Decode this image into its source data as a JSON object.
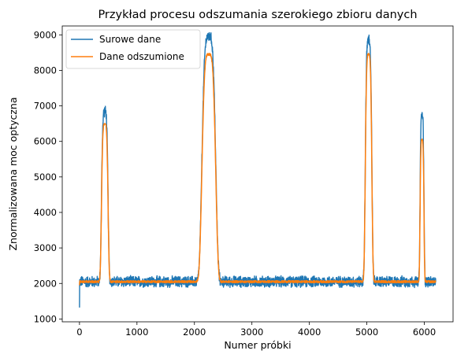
{
  "chart_data": {
    "type": "line",
    "title": "Przykład procesu odszumania szerokiego zbioru danych",
    "xlabel": "Numer próbki",
    "ylabel": "Znormalizowana moc optyczna",
    "xlim": [
      -300,
      6500
    ],
    "ylim": [
      920,
      9250
    ],
    "xticks": [
      0,
      1000,
      2000,
      3000,
      4000,
      5000,
      6000
    ],
    "yticks": [
      1000,
      2000,
      3000,
      4000,
      5000,
      6000,
      7000,
      8000,
      9000
    ],
    "grid": false,
    "legend_position": "top-left",
    "baseline": 2050,
    "n_samples": 6200,
    "peaks": [
      {
        "center": 440,
        "raw_max": 6850,
        "smooth_max": 6500,
        "width": 100
      },
      {
        "center": 2250,
        "raw_max": 8950,
        "smooth_max": 8450,
        "width": 210
      },
      {
        "center": 5030,
        "raw_max": 8850,
        "smooth_max": 8450,
        "width": 100
      },
      {
        "center": 5960,
        "raw_max": 6750,
        "smooth_max": 6050,
        "width": 60
      }
    ],
    "series": [
      {
        "name": "Surowe dane",
        "color": "#1f77b4",
        "noise_amplitude": 150,
        "min_value": 1320
      },
      {
        "name": "Dane odszumione",
        "color": "#ff7f0e",
        "noise_amplitude": 30
      }
    ]
  }
}
